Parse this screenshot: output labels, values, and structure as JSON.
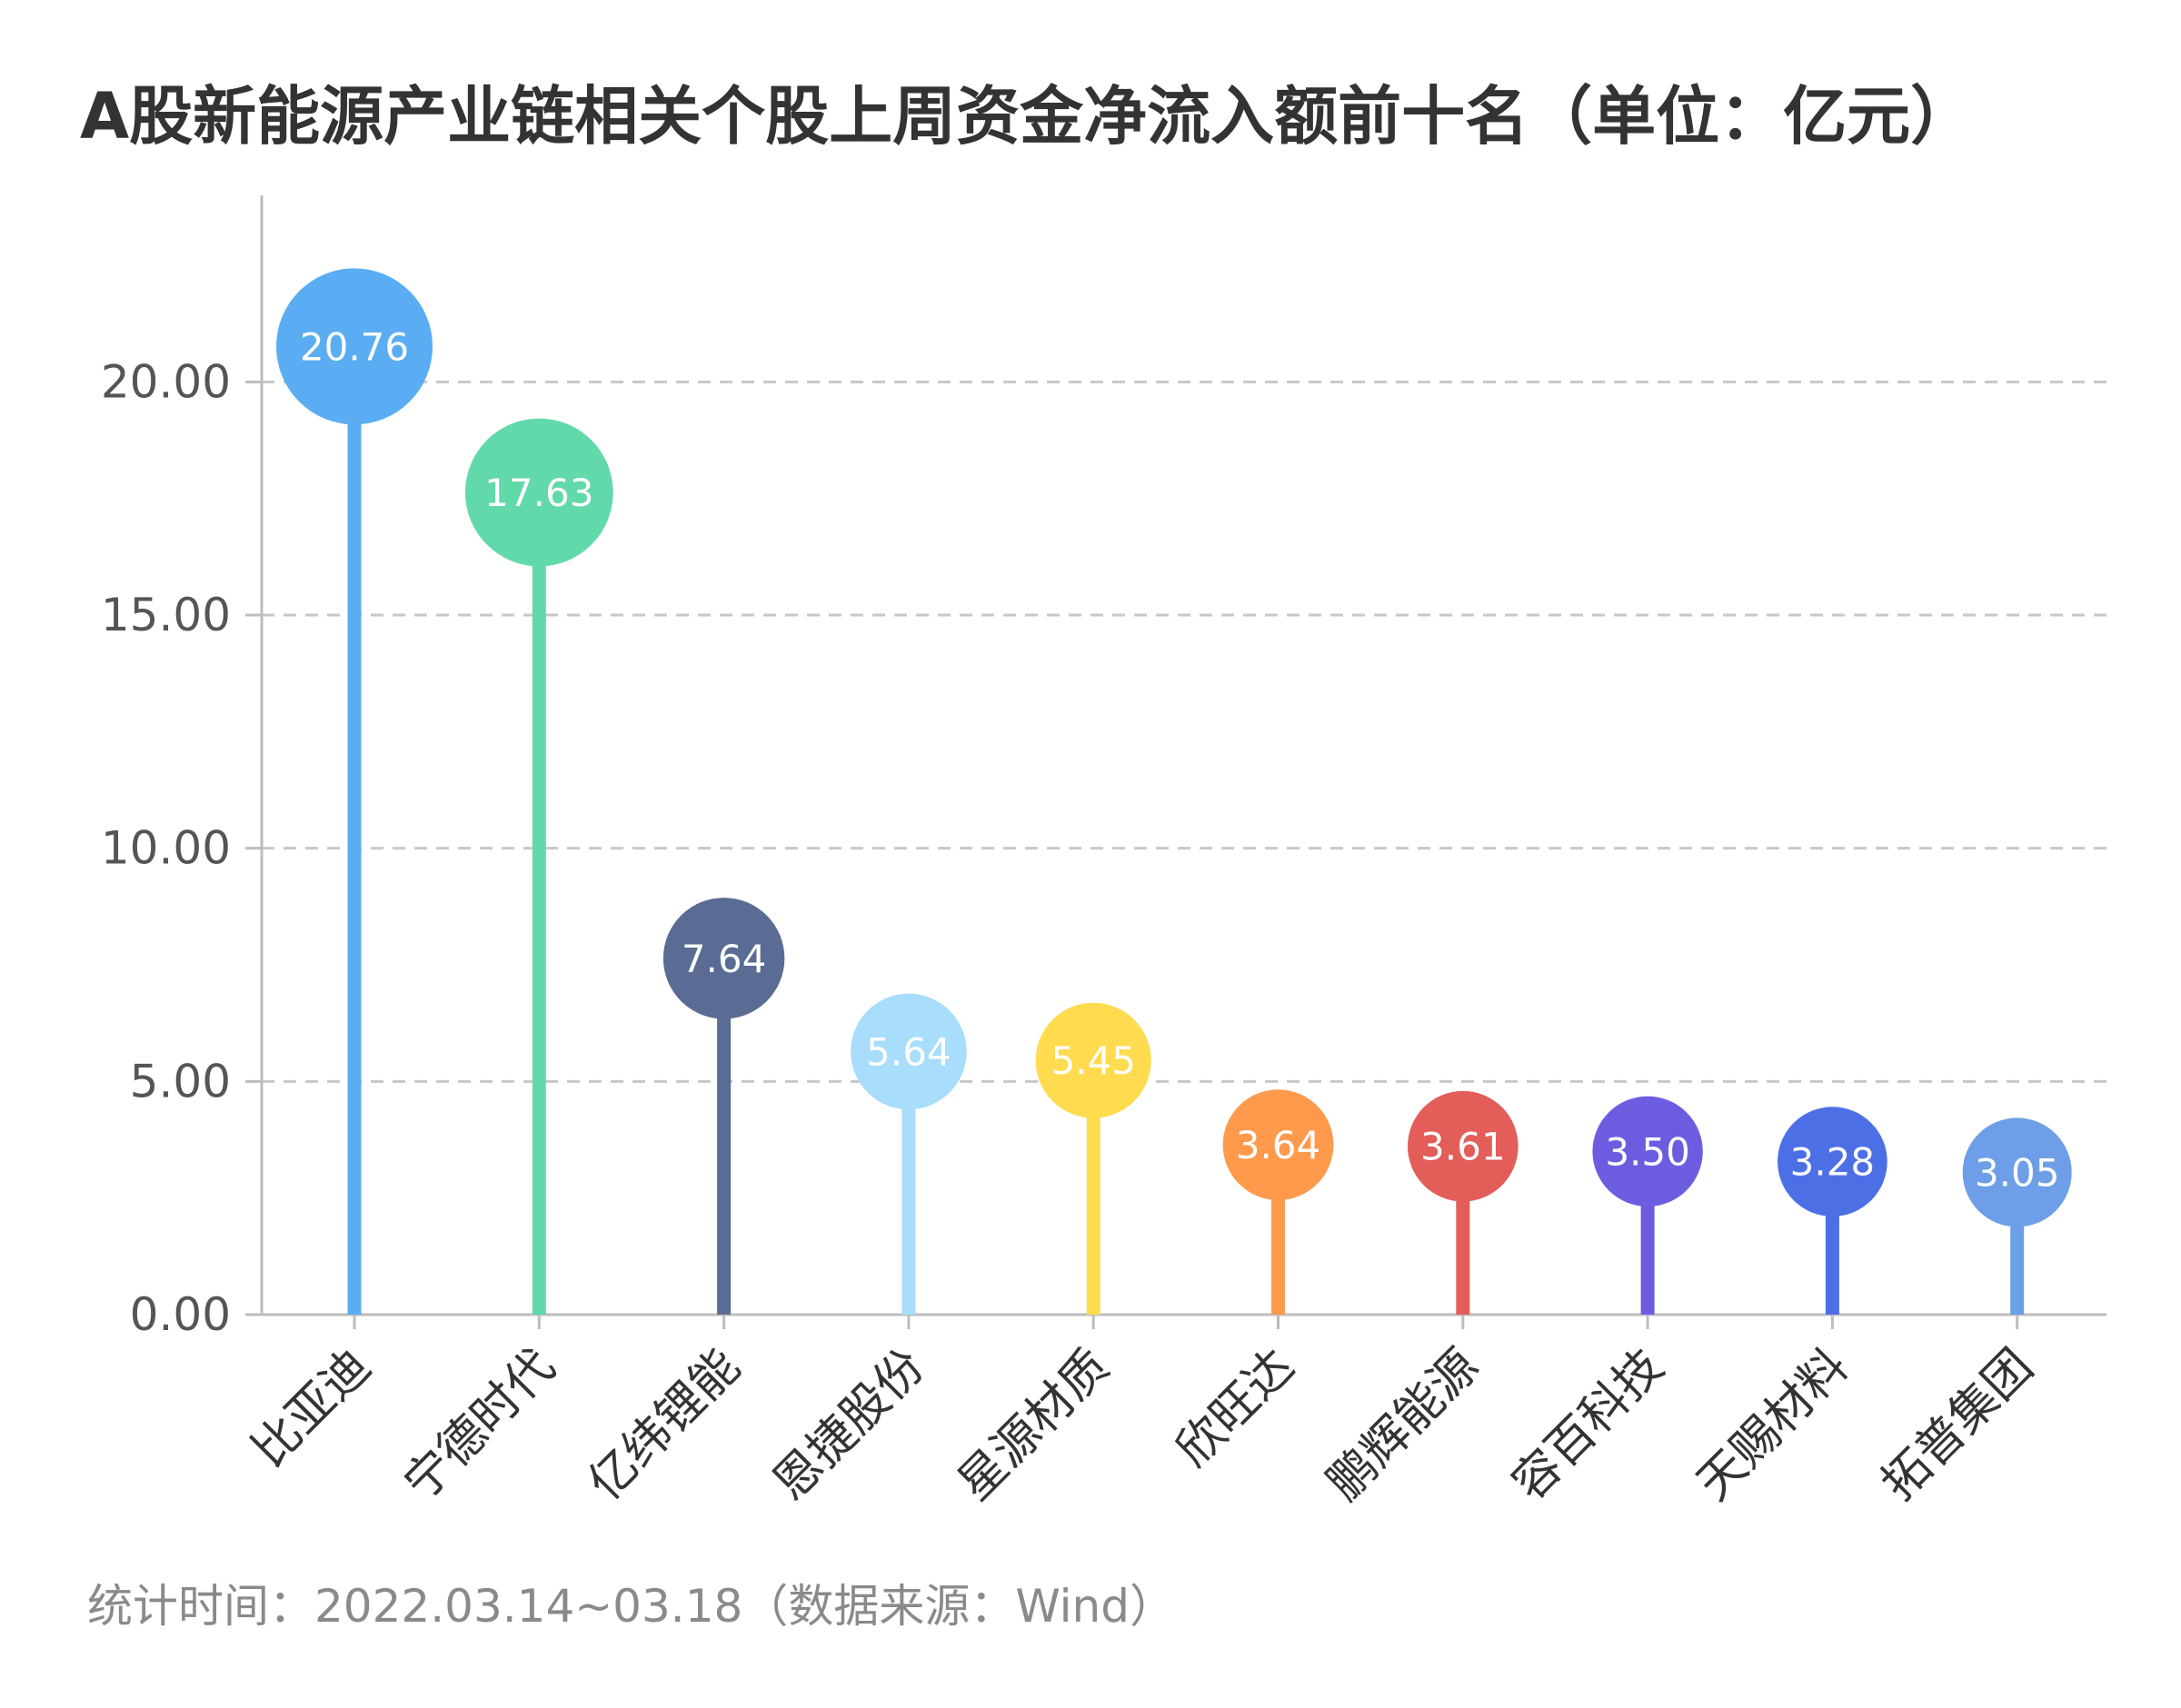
{
  "title": "A股新能源产业链相关个股上周资金净流入额前十名（单位：亿元）",
  "footnote": "统计时间：2022.03.14~03.18（数据来源：Wind）",
  "chart_data": {
    "type": "bar",
    "style": "lollipop",
    "title": "A股新能源产业链相关个股上周资金净流入额前十名（单位：亿元）",
    "xlabel": "",
    "ylabel": "",
    "ylim": [
      0,
      24
    ],
    "yticks": [
      0,
      5,
      10,
      15,
      20
    ],
    "ytick_labels": [
      "0.00",
      "5.00",
      "10.00",
      "15.00",
      "20.00"
    ],
    "grid": "horizontal dashed",
    "categories": [
      "比亚迪",
      "宁德时代",
      "亿纬锂能",
      "恩捷股份",
      "星源材质",
      "欣旺达",
      "鹏辉能源",
      "容百科技",
      "天赐材料",
      "拓普集团"
    ],
    "values": [
      20.76,
      17.63,
      7.64,
      5.64,
      5.45,
      3.64,
      3.61,
      3.5,
      3.28,
      3.05
    ],
    "value_labels": [
      "20.76",
      "17.63",
      "7.64",
      "5.64",
      "5.45",
      "3.64",
      "3.61",
      "3.50",
      "3.28",
      "3.05"
    ],
    "colors": [
      "#5AADF2",
      "#62D9AA",
      "#5A6C93",
      "#A8DDFB",
      "#FFDB4F",
      "#FF9A4D",
      "#E35D59",
      "#6C5DE0",
      "#4D6FE6",
      "#6E9EE7"
    ]
  }
}
